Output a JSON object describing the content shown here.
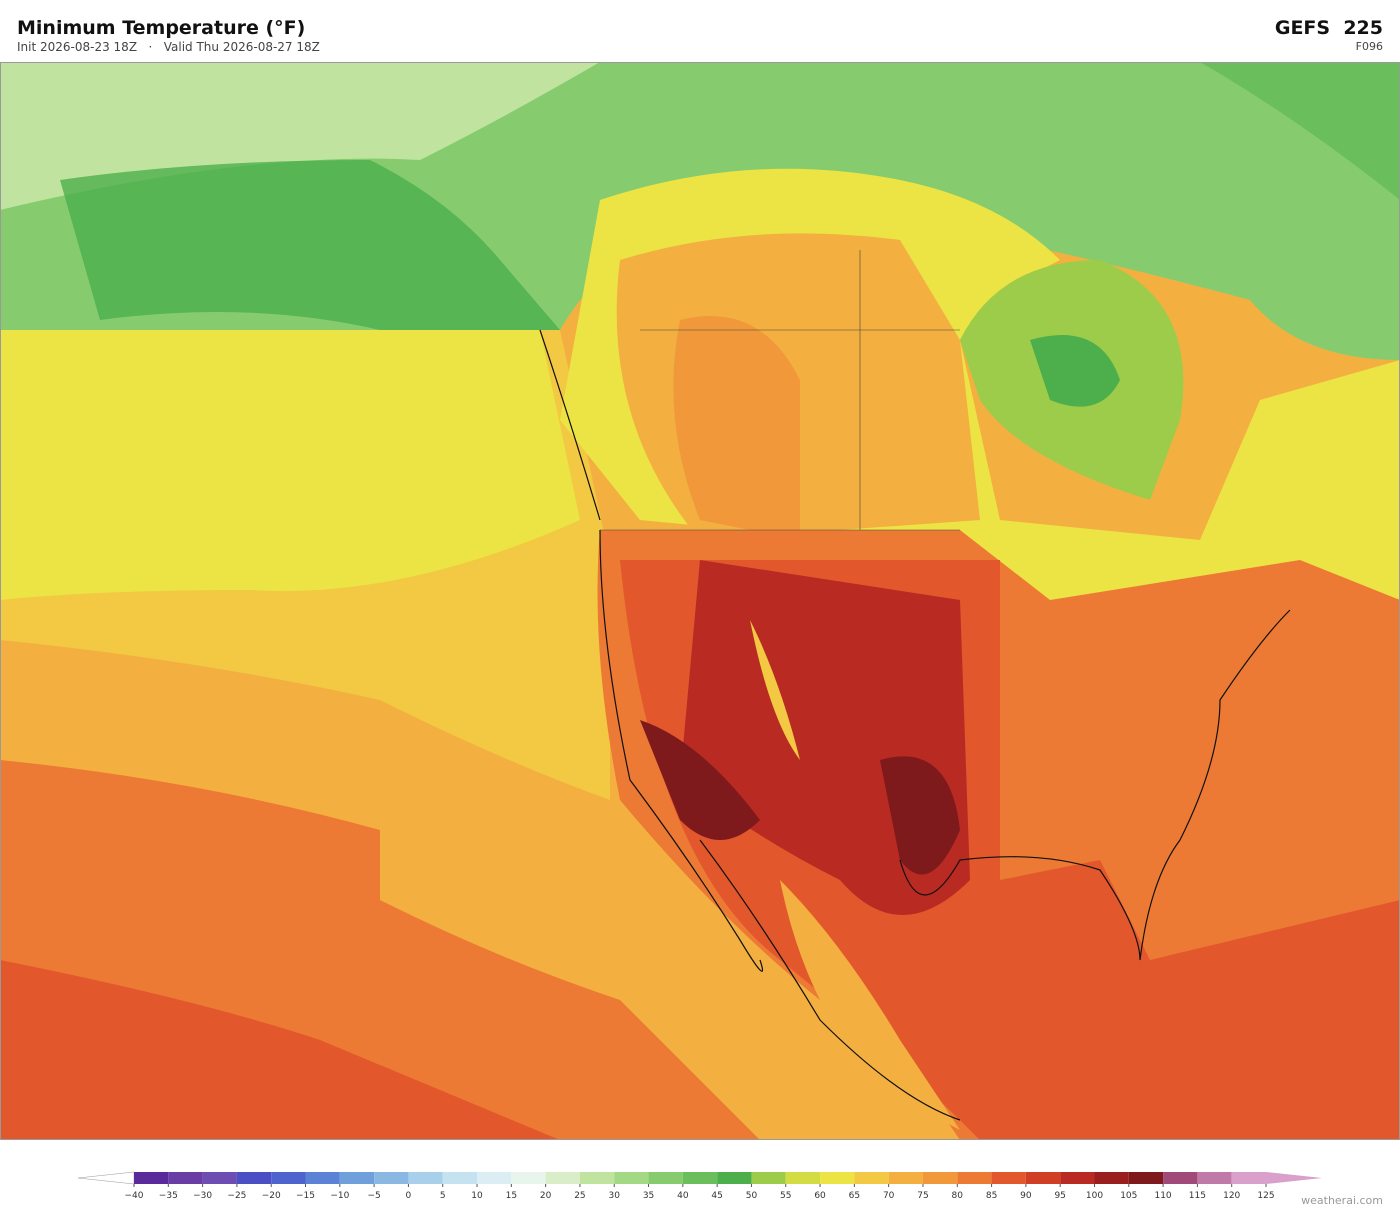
{
  "header": {
    "title": "Minimum Temperature  (°F)",
    "subtitle": "Init 2026-08-23 18Z   ·   Valid Thu 2026-08-27 18Z",
    "model": "GEFS  225",
    "forecast_hour": "F096"
  },
  "colorbar": {
    "ticks": [
      {
        "value": -40,
        "label": "−40"
      },
      {
        "value": -35,
        "label": "−35"
      },
      {
        "value": -30,
        "label": "−30"
      },
      {
        "value": -25,
        "label": "−25"
      },
      {
        "value": -20,
        "label": "−20"
      },
      {
        "value": -15,
        "label": "−15"
      },
      {
        "value": -10,
        "label": "−10"
      },
      {
        "value": -5,
        "label": "−5"
      },
      0,
      5,
      10,
      15,
      20,
      25,
      30,
      35,
      40,
      45,
      50,
      55,
      60,
      65,
      70,
      75,
      80,
      85,
      90,
      95,
      100,
      105,
      110,
      115,
      120,
      125
    ],
    "colors": [
      "#5b2a9a",
      "#6a3da5",
      "#6e4db3",
      "#4b4fc4",
      "#4f63cf",
      "#5b82d5",
      "#6fa0dc",
      "#8ab8e2",
      "#a8d0ea",
      "#c4e2f0",
      "#dbeef3",
      "#e8f5ec",
      "#d8edc8",
      "#c0e4a0",
      "#a3d884",
      "#86cc6e",
      "#6abf5c",
      "#4caf4c",
      "#9ccc4a",
      "#d4dc44",
      "#ece444",
      "#f3c842",
      "#f3b040",
      "#f0983a",
      "#ec7a34",
      "#e2572c",
      "#d13e26",
      "#b82a22",
      "#9a1e1e",
      "#7e1a1c",
      "#a04a7a",
      "#c07aa8",
      "#d9a0cc"
    ],
    "under_color": "#ffffff",
    "over_color": "#d9a0cc"
  },
  "watermark": "weatherai.com"
}
